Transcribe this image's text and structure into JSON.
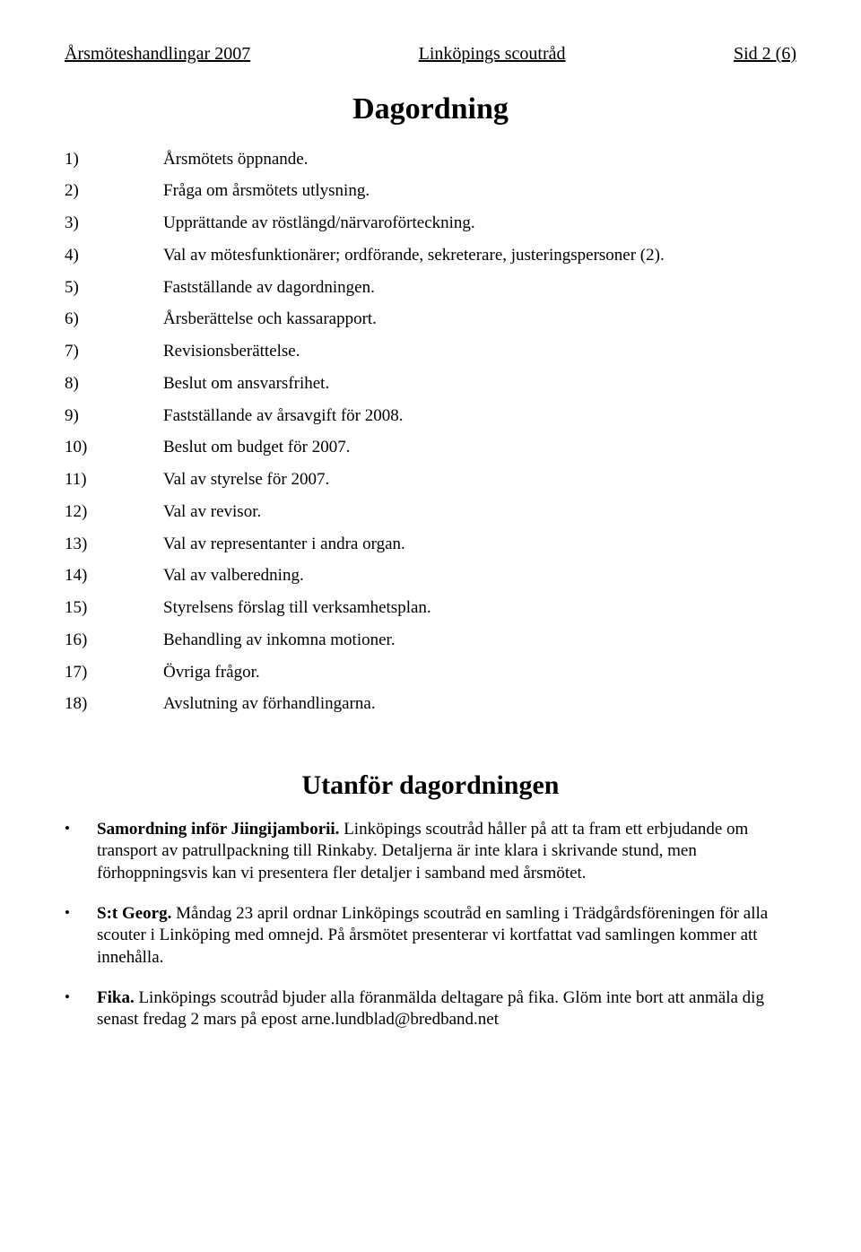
{
  "header": {
    "left": "Årsmöteshandlingar 2007",
    "center": "Linköpings scoutråd",
    "right": "Sid 2 (6)"
  },
  "title": "Dagordning",
  "agenda": [
    {
      "num": "1)",
      "text": "Årsmötets öppnande."
    },
    {
      "num": "2)",
      "text": "Fråga om årsmötets utlysning."
    },
    {
      "num": "3)",
      "text": "Upprättande av röstlängd/närvaroförteckning."
    },
    {
      "num": "4)",
      "text": "Val av mötesfunktionärer; ordförande, sekreterare, justeringspersoner (2)."
    },
    {
      "num": "5)",
      "text": "Fastställande av dagordningen."
    },
    {
      "num": "6)",
      "text": "Årsberättelse och kassarapport."
    },
    {
      "num": "7)",
      "text": "Revisionsberättelse."
    },
    {
      "num": "8)",
      "text": "Beslut om ansvarsfrihet."
    },
    {
      "num": "9)",
      "text": "Fastställande av årsavgift för 2008."
    },
    {
      "num": "10)",
      "text": "Beslut om budget för 2007."
    },
    {
      "num": "11)",
      "text": "Val av styrelse för 2007."
    },
    {
      "num": "12)",
      "text": "Val av revisor."
    },
    {
      "num": "13)",
      "text": "Val av representanter i andra organ."
    },
    {
      "num": "14)",
      "text": "Val av valberedning."
    },
    {
      "num": "15)",
      "text": "Styrelsens förslag till verksamhetsplan."
    },
    {
      "num": "16)",
      "text": "Behandling av inkomna motioner."
    },
    {
      "num": "17)",
      "text": "Övriga frågor."
    },
    {
      "num": "18)",
      "text": "Avslutning av förhandlingarna."
    }
  ],
  "subtitle": "Utanför dagordningen",
  "bullets": [
    {
      "bold": "Samordning inför Jiingijamborii.",
      "rest": " Linköpings scoutråd håller på att ta fram ett erbjudande om transport av patrullpackning till Rinkaby. Detaljerna är inte klara i skrivande stund, men förhoppningsvis kan vi presentera fler detaljer i samband med årsmötet."
    },
    {
      "bold": "S:t Georg.",
      "rest": " Måndag 23 april ordnar Linköpings scoutråd en samling i Trädgårds­föreningen för alla scouter i Linköping med omnejd. På årsmötet presenterar vi kortfattat vad samlingen kommer att innehålla."
    },
    {
      "bold": "Fika.",
      "rest": " Linköpings scoutråd bjuder alla föranmälda deltagare på fika. Glöm inte bort att anmäla dig senast fredag 2 mars på epost arne.lundblad@bredband.net"
    }
  ]
}
